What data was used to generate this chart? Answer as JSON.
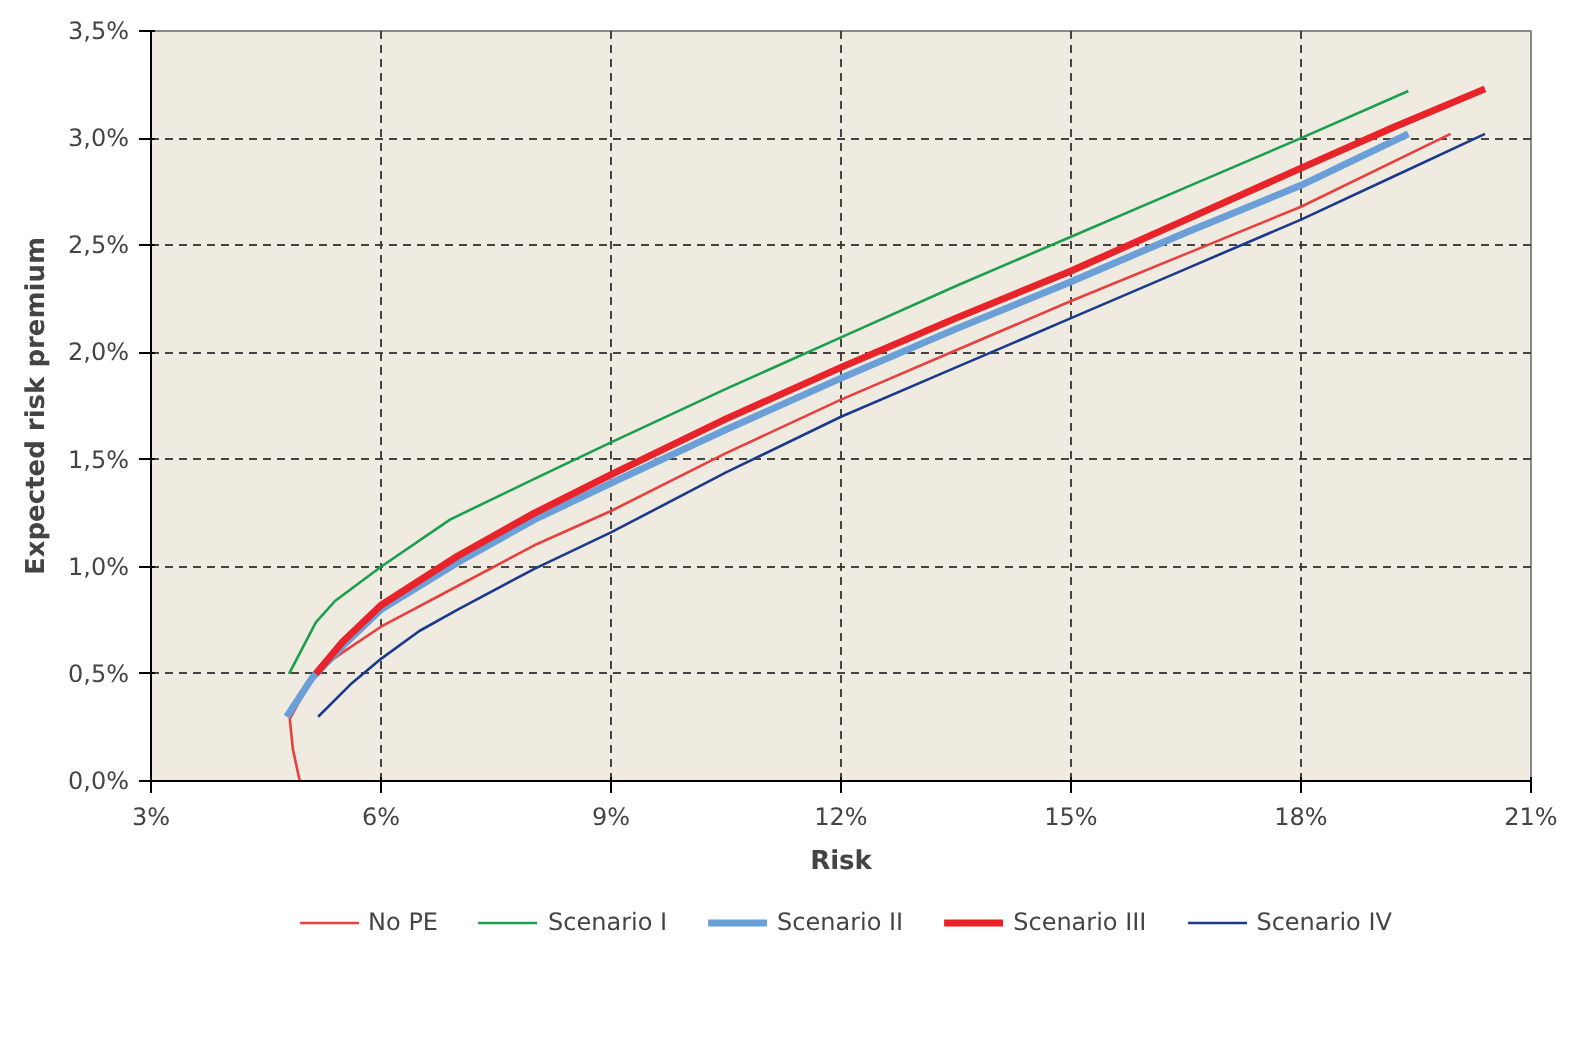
{
  "chart_data": {
    "type": "line",
    "xlabel": "Risk",
    "ylabel": "Expected risk premium",
    "xlim": [
      3,
      21
    ],
    "xticks": [
      {
        "value": 3,
        "label": "3%"
      },
      {
        "value": 6,
        "label": "6%"
      },
      {
        "value": 9,
        "label": "9%"
      },
      {
        "value": 12,
        "label": "12%"
      },
      {
        "value": 15,
        "label": "15%"
      },
      {
        "value": 18,
        "label": "18%"
      },
      {
        "value": 21,
        "label": "21%"
      }
    ],
    "ylim": [
      0,
      3.5
    ],
    "yticks": [
      {
        "value": 0,
        "label": "0,0%"
      },
      {
        "value": 0.5,
        "label": "0,5%"
      },
      {
        "value": 1,
        "label": "1,0%"
      },
      {
        "value": 1.5,
        "label": "1,5%"
      },
      {
        "value": 2,
        "label": "2,0%"
      },
      {
        "value": 2.5,
        "label": "2,5%"
      },
      {
        "value": 3,
        "label": "3,0%"
      },
      {
        "value": 3.5,
        "label": "3,5%"
      }
    ],
    "grid": true,
    "legend": "bottom",
    "marker": "none",
    "line_style": "solid",
    "series": [
      {
        "name": "No PE",
        "color": "#e8403f",
        "x": [
          4.94,
          4.85,
          4.81,
          5.15,
          5.5,
          6,
          7,
          8,
          9,
          10.5,
          12,
          13.5,
          15,
          16.5,
          18,
          19.95
        ],
        "values": [
          0,
          0.15,
          0.29,
          0.51,
          0.6,
          0.72,
          0.91,
          1.1,
          1.26,
          1.53,
          1.78,
          2.01,
          2.24,
          2.46,
          2.68,
          3.02
        ]
      },
      {
        "name": "Scenario I",
        "color": "#1aa04a",
        "x": [
          4.8,
          5.15,
          5.4,
          6,
          6.9,
          8,
          9,
          10.5,
          12,
          13.5,
          15,
          16.5,
          18,
          19.4
        ],
        "values": [
          0.5,
          0.74,
          0.84,
          1.0,
          1.22,
          1.41,
          1.58,
          1.83,
          2.07,
          2.31,
          2.54,
          2.77,
          3.0,
          3.22
        ]
      },
      {
        "name": "Scenario II",
        "color": "#6a9fd8",
        "x": [
          4.77,
          5.1,
          5.5,
          6,
          7,
          8,
          9,
          10.5,
          12,
          13.5,
          15,
          16.5,
          18,
          19.4
        ],
        "values": [
          0.3,
          0.48,
          0.63,
          0.8,
          1.02,
          1.22,
          1.39,
          1.64,
          1.88,
          2.11,
          2.33,
          2.56,
          2.78,
          3.02
        ]
      },
      {
        "name": "Scenario III",
        "color": "#e8232a",
        "x": [
          5.15,
          5.5,
          6,
          7,
          8,
          9,
          10.5,
          12,
          13.5,
          15,
          16.5,
          18,
          19.2,
          20.4
        ],
        "values": [
          0.5,
          0.65,
          0.82,
          1.05,
          1.25,
          1.43,
          1.69,
          1.93,
          2.16,
          2.38,
          2.62,
          2.86,
          3.05,
          3.23
        ]
      },
      {
        "name": "Scenario IV",
        "color": "#1b3a8c",
        "x": [
          5.18,
          5.6,
          6,
          6.5,
          7,
          8,
          9,
          10.5,
          12,
          13.5,
          15,
          16.5,
          18,
          19.2,
          20.4
        ],
        "values": [
          0.3,
          0.45,
          0.57,
          0.7,
          0.8,
          0.99,
          1.16,
          1.44,
          1.7,
          1.93,
          2.16,
          2.39,
          2.62,
          2.82,
          3.02
        ]
      }
    ]
  }
}
